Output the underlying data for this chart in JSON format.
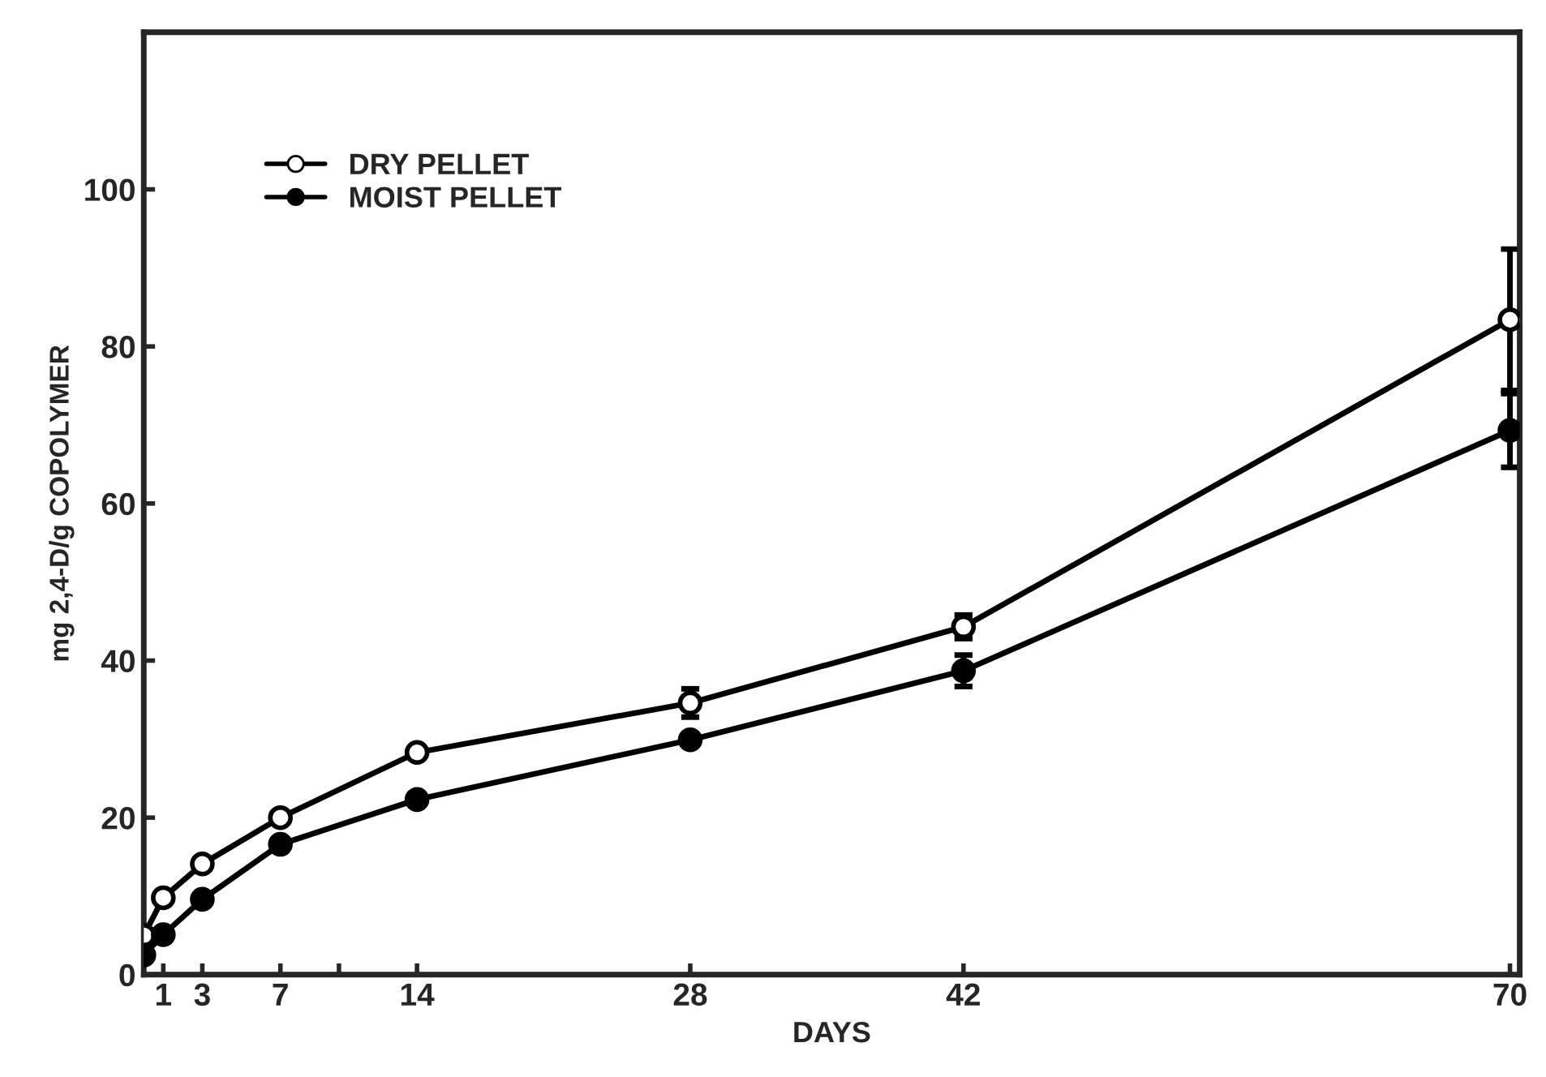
{
  "chart_data": {
    "type": "line",
    "xlabel": "DAYS",
    "ylabel": "mg 2,4-D/g COPOLYMER",
    "x": [
      0,
      1,
      3,
      7,
      14,
      28,
      42,
      70
    ],
    "series": [
      {
        "name": "DRY PELLET",
        "color": "#000000",
        "values": [
          5,
          9.8,
          14.1,
          20,
          28.3,
          34.6,
          44.3,
          83.4
        ],
        "errors": [
          null,
          null,
          null,
          null,
          null,
          1.8,
          1.5,
          9
        ]
      },
      {
        "name": "MOIST PELLET",
        "color": "#000000",
        "values": [
          2.5,
          5.1,
          9.6,
          16.6,
          22.3,
          29.9,
          38.7,
          69.3
        ],
        "errors": [
          null,
          null,
          null,
          null,
          null,
          null,
          2,
          4.7
        ]
      }
    ],
    "xlim": [
      0,
      70.5
    ],
    "ylim": [
      0,
      120
    ],
    "xticks": [
      1,
      3,
      7,
      {
        "value": 10,
        "label": null
      },
      14,
      28,
      42,
      70
    ],
    "yticks": [
      0,
      20,
      40,
      60,
      80,
      100
    ],
    "marker": "circle",
    "line_style": "solid",
    "legend": "top left",
    "grid": false
  }
}
